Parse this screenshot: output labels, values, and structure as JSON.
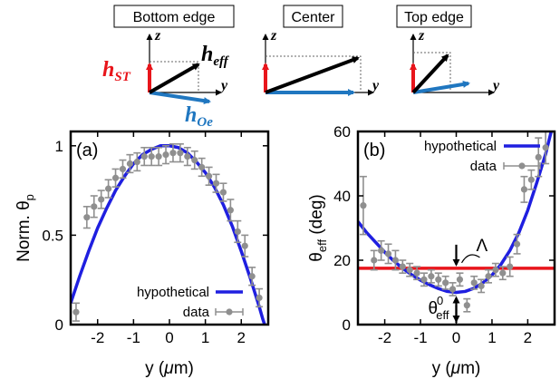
{
  "diagram": {
    "boxes": [
      "Bottom edge",
      "Center",
      "Top edge"
    ],
    "axis_z": "z",
    "axis_y": "y",
    "h_st": {
      "base": "h",
      "sub": "ST",
      "color": "#e8151b"
    },
    "h_eff": {
      "base": "h",
      "sub": "eff",
      "color": "#000000"
    },
    "h_oe": {
      "base": "h",
      "sub": "Oe",
      "color": "#2077c0"
    }
  },
  "chart_data": [
    {
      "type": "line",
      "panel_label": "(a)",
      "ylabel": {
        "base": "Norm. θ",
        "sub": "p"
      },
      "xlabel": {
        "pre": "y (",
        "unit": "μ",
        "post": "m)"
      },
      "xlim": [
        -2.75,
        2.75
      ],
      "ylim": [
        0,
        1.08
      ],
      "xticks": [
        -2,
        -1,
        0,
        1,
        2
      ],
      "xtick_labels": [
        "-2",
        "-1",
        "0",
        "1",
        "2"
      ],
      "yticks": [
        0,
        0.5,
        1
      ],
      "ytick_labels": [
        "0",
        "0.5",
        "1"
      ],
      "legend": {
        "position": "bottom-right",
        "entries": [
          "hypothetical",
          "data"
        ]
      },
      "series": [
        {
          "name": "hypothetical",
          "style": "line",
          "color": "#1f1fe0",
          "x": [
            -2.75,
            -2.5,
            -2.25,
            -2.0,
            -1.75,
            -1.5,
            -1.25,
            -1.0,
            -0.75,
            -0.5,
            -0.25,
            0.0,
            0.25,
            0.5,
            0.75,
            1.0,
            1.25,
            1.5,
            1.75,
            2.0,
            2.25,
            2.5,
            2.6,
            2.7
          ],
          "y": [
            0.12,
            0.27,
            0.41,
            0.54,
            0.65,
            0.75,
            0.83,
            0.9,
            0.95,
            0.98,
            1.0,
            1.0,
            0.99,
            0.96,
            0.91,
            0.85,
            0.77,
            0.67,
            0.55,
            0.41,
            0.26,
            0.1,
            0.03,
            -0.03
          ]
        },
        {
          "name": "data",
          "style": "errorbar",
          "color": "#8f8f8f",
          "x": [
            -2.6,
            -2.3,
            -2.1,
            -1.9,
            -1.7,
            -1.5,
            -1.3,
            -1.1,
            -0.9,
            -0.7,
            -0.5,
            -0.3,
            -0.1,
            0.1,
            0.3,
            0.5,
            0.7,
            0.9,
            1.1,
            1.3,
            1.5,
            1.7,
            1.9,
            2.1,
            2.3,
            2.5
          ],
          "y": [
            0.07,
            0.6,
            0.66,
            0.7,
            0.76,
            0.82,
            0.87,
            0.9,
            0.91,
            0.94,
            0.94,
            0.94,
            0.95,
            0.96,
            0.96,
            0.94,
            0.92,
            0.88,
            0.83,
            0.79,
            0.74,
            0.64,
            0.52,
            0.44,
            0.27,
            0.15
          ],
          "err": [
            0.05,
            0.06,
            0.06,
            0.05,
            0.05,
            0.05,
            0.05,
            0.05,
            0.05,
            0.05,
            0.05,
            0.05,
            0.05,
            0.05,
            0.05,
            0.05,
            0.05,
            0.05,
            0.05,
            0.05,
            0.05,
            0.06,
            0.06,
            0.06,
            0.05,
            0.05
          ]
        }
      ]
    },
    {
      "type": "line",
      "panel_label": "(b)",
      "ylabel": {
        "base": "θ",
        "sub": "eff",
        "post": " (deg)"
      },
      "xlabel": {
        "pre": "y (",
        "unit": "μ",
        "post": "m)"
      },
      "xlim": [
        -2.75,
        2.75
      ],
      "ylim": [
        0,
        60
      ],
      "xticks": [
        -2,
        -1,
        0,
        1,
        2
      ],
      "xtick_labels": [
        "-2",
        "-1",
        "0",
        "1",
        "2"
      ],
      "yticks": [
        0,
        20,
        40,
        60
      ],
      "ytick_labels": [
        "0",
        "20",
        "40",
        "60"
      ],
      "legend": {
        "position": "top-right",
        "entries": [
          "hypothetical",
          "data"
        ]
      },
      "annotations": [
        {
          "text": "Λ"
        },
        {
          "base": "θ",
          "sub": "eff",
          "sup": "0"
        }
      ],
      "hline": {
        "y": 17.5,
        "color": "#e8151b"
      },
      "series": [
        {
          "name": "hypothetical",
          "style": "line",
          "color": "#1f1fe0",
          "x": [
            -2.75,
            -2.5,
            -2.25,
            -2.0,
            -1.75,
            -1.5,
            -1.25,
            -1.0,
            -0.75,
            -0.5,
            -0.25,
            0.0,
            0.25,
            0.5,
            0.75,
            1.0,
            1.25,
            1.5,
            1.75,
            2.0,
            2.25,
            2.5,
            2.6,
            2.7
          ],
          "y": [
            32,
            28.5,
            25.5,
            22.5,
            19.8,
            17.5,
            15.5,
            13.8,
            12.4,
            11.2,
            10.3,
            10.0,
            10.3,
            11.3,
            13.0,
            15.4,
            18.7,
            23.0,
            28.5,
            35.5,
            44.0,
            53.0,
            57.5,
            62.0
          ]
        },
        {
          "name": "data",
          "style": "errorbar",
          "color": "#8f8f8f",
          "x": [
            -2.6,
            -2.3,
            -2.1,
            -1.9,
            -1.7,
            -1.5,
            -1.3,
            -1.1,
            -0.9,
            -0.7,
            -0.5,
            -0.3,
            -0.1,
            0.1,
            0.3,
            0.5,
            0.7,
            0.9,
            1.1,
            1.3,
            1.5,
            1.7,
            1.9,
            2.1,
            2.3,
            2.5
          ],
          "y": [
            37,
            20,
            23,
            22,
            20,
            18,
            17,
            16,
            14,
            15,
            14,
            13,
            11,
            14,
            6,
            13,
            12,
            15,
            17,
            16,
            18,
            25,
            42,
            45,
            52,
            55
          ],
          "err": [
            9,
            3,
            3,
            3,
            3,
            2,
            2,
            2,
            2,
            2,
            2,
            2,
            2,
            2,
            2,
            2,
            2,
            2,
            2,
            2,
            3,
            3,
            4,
            3,
            6,
            5
          ]
        }
      ]
    }
  ]
}
